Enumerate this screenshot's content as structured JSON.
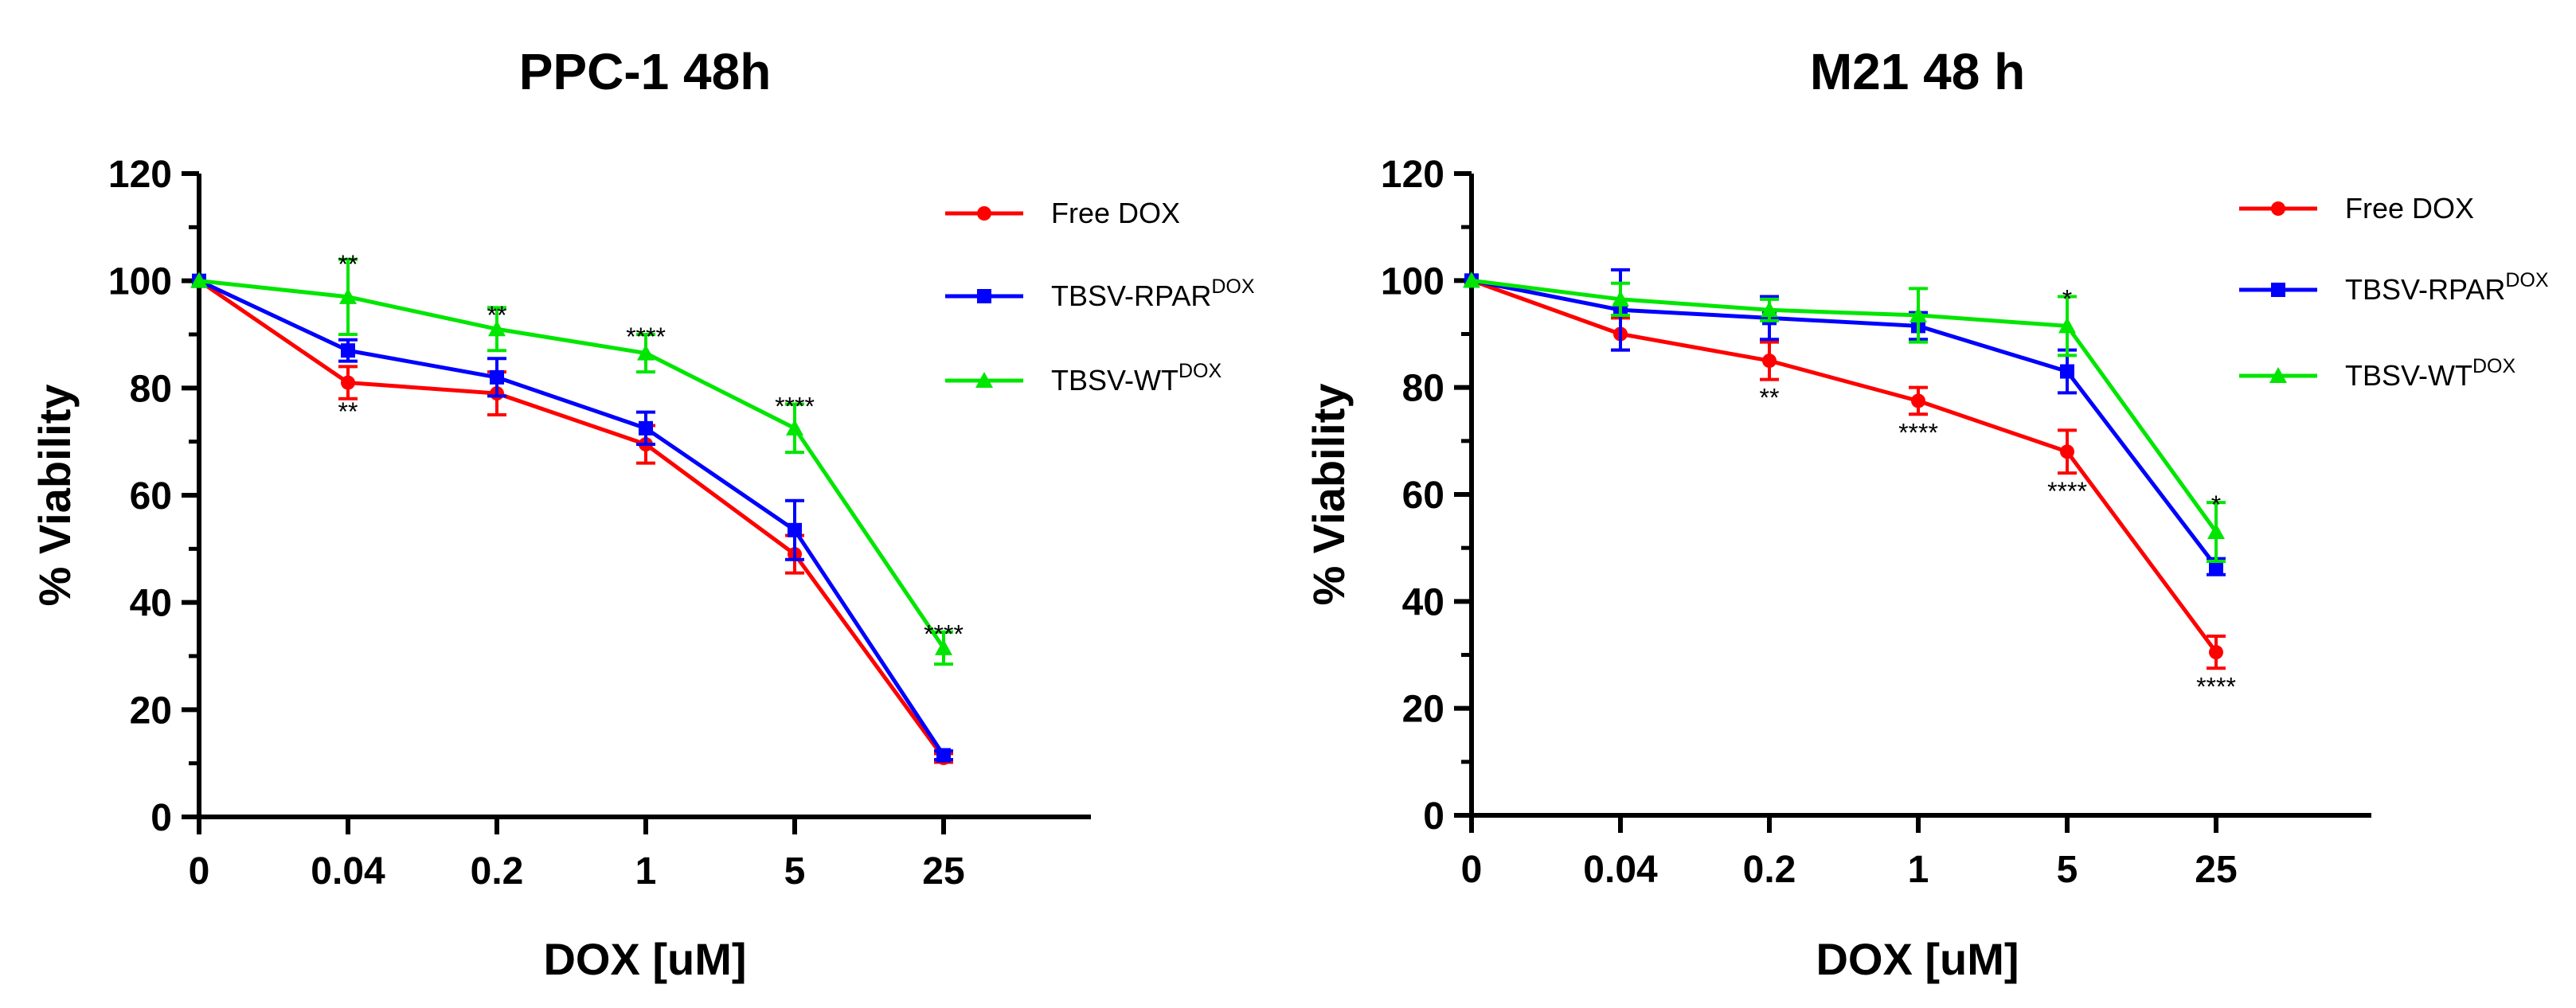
{
  "chart_data": [
    {
      "type": "line",
      "title": "PPC-1 48h",
      "xlabel": "DOX [uM]",
      "ylabel": "% Viability",
      "categories": [
        "0",
        "0.04",
        "0.2",
        "1",
        "5",
        "25"
      ],
      "ylim": [
        0,
        120
      ],
      "yticks": [
        "0",
        "20",
        "40",
        "60",
        "80",
        "100",
        "120"
      ],
      "legend_position": "top-right",
      "series": [
        {
          "name": "Free DOX",
          "label_main": "Free DOX",
          "label_sup": "",
          "color": "#ff0000",
          "marker": "circle",
          "values": [
            100,
            81,
            79,
            69.5,
            49,
            11
          ],
          "errors": [
            0,
            3,
            4,
            3.5,
            3.5,
            0.8
          ]
        },
        {
          "name": "TBSV-RPAR DOX",
          "label_main": "TBSV-RPAR",
          "label_sup": "DOX",
          "color": "#0000ff",
          "marker": "square",
          "values": [
            100,
            87,
            82,
            72.5,
            53.5,
            11.5
          ],
          "errors": [
            0,
            2,
            3.5,
            3,
            5.5,
            0.8
          ]
        },
        {
          "name": "TBSV-WT DOX",
          "label_main": "TBSV-WT",
          "label_sup": "DOX",
          "color": "#00e600",
          "marker": "triangle",
          "values": [
            100,
            97,
            91,
            86.5,
            72.5,
            31.5
          ],
          "errors": [
            0,
            7,
            4,
            3.5,
            4.5,
            3
          ]
        }
      ],
      "annotations": [
        {
          "text": "**",
          "x": "0.04",
          "y": 103.5,
          "place": "above"
        },
        {
          "text": "**",
          "x": "0.04",
          "y": 79,
          "place": "below"
        },
        {
          "text": "**",
          "x": "0.2",
          "y": 94,
          "place": "above"
        },
        {
          "text": "****",
          "x": "1",
          "y": 90,
          "place": "above"
        },
        {
          "text": "****",
          "x": "5",
          "y": 77,
          "place": "above"
        },
        {
          "text": "****",
          "x": "25",
          "y": 34.5,
          "place": "above"
        }
      ]
    },
    {
      "type": "line",
      "title": "M21 48 h",
      "xlabel": "DOX [uM]",
      "ylabel": "% Viability",
      "categories": [
        "0",
        "0.04",
        "0.2",
        "1",
        "5",
        "25"
      ],
      "ylim": [
        0,
        120
      ],
      "yticks": [
        "0",
        "20",
        "40",
        "60",
        "80",
        "100",
        "120"
      ],
      "legend_position": "top-right",
      "series": [
        {
          "name": "Free DOX",
          "label_main": "Free DOX",
          "label_sup": "",
          "color": "#ff0000",
          "marker": "circle",
          "values": [
            100,
            90,
            85,
            77.5,
            68,
            30.5
          ],
          "errors": [
            0,
            3,
            3.5,
            2.5,
            4,
            3
          ]
        },
        {
          "name": "TBSV-RPAR DOX",
          "label_main": "TBSV-RPAR",
          "label_sup": "DOX",
          "color": "#0000ff",
          "marker": "square",
          "values": [
            100,
            94.5,
            93,
            91.5,
            83,
            46.5
          ],
          "errors": [
            0,
            7.5,
            4,
            2.5,
            4,
            1.5
          ]
        },
        {
          "name": "TBSV-WT DOX",
          "label_main": "TBSV-WT",
          "label_sup": "DOX",
          "color": "#00e600",
          "marker": "triangle",
          "values": [
            100,
            96.5,
            94.5,
            93.5,
            91.5,
            53
          ],
          "errors": [
            0,
            3,
            2,
            5,
            5.5,
            5.5
          ]
        }
      ],
      "annotations": [
        {
          "text": "**",
          "x": "0.2",
          "y": 81.5,
          "place": "below"
        },
        {
          "text": "****",
          "x": "1",
          "y": 75,
          "place": "below"
        },
        {
          "text": "*",
          "x": "5",
          "y": 97,
          "place": "above"
        },
        {
          "text": "****",
          "x": "5",
          "y": 64,
          "place": "below"
        },
        {
          "text": "*",
          "x": "25",
          "y": 58.5,
          "place": "above"
        },
        {
          "text": "****",
          "x": "25",
          "y": 27.5,
          "place": "below"
        }
      ]
    }
  ]
}
